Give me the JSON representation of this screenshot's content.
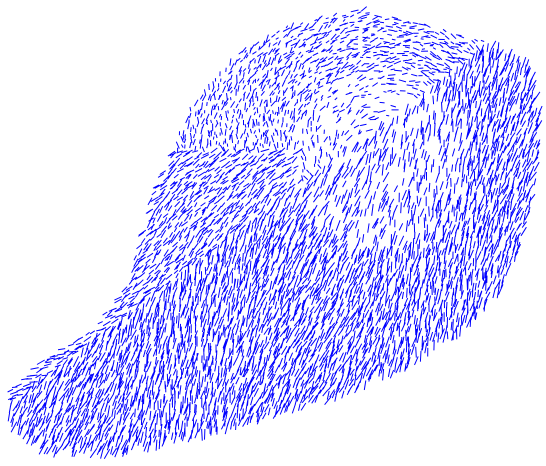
{
  "figure": {
    "type": "quiver",
    "color": "#0000ff"
  }
}
